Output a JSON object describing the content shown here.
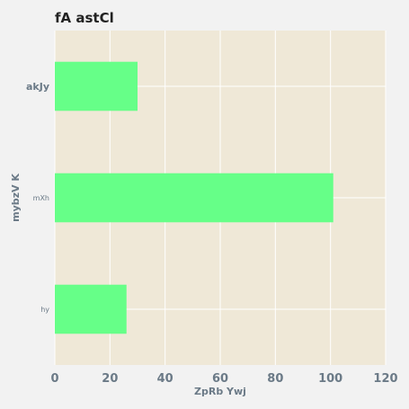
{
  "chart_data": {
    "type": "bar",
    "orientation": "horizontal",
    "title": "fA astCl",
    "xlabel": "ZpRb Ywj",
    "ylabel": "mybzV K",
    "categories": [
      "akJy",
      "mXh",
      "hy"
    ],
    "values": [
      30,
      101,
      26
    ],
    "xlim": [
      0,
      120
    ],
    "xticks": [
      0,
      20,
      40,
      60,
      80,
      100,
      120
    ],
    "grid": true,
    "colors": {
      "bar": "#66ff88",
      "plot_background": "#efe8d7",
      "grid": "#ffffff",
      "text": "#6b7a87",
      "title": "#222222"
    }
  }
}
